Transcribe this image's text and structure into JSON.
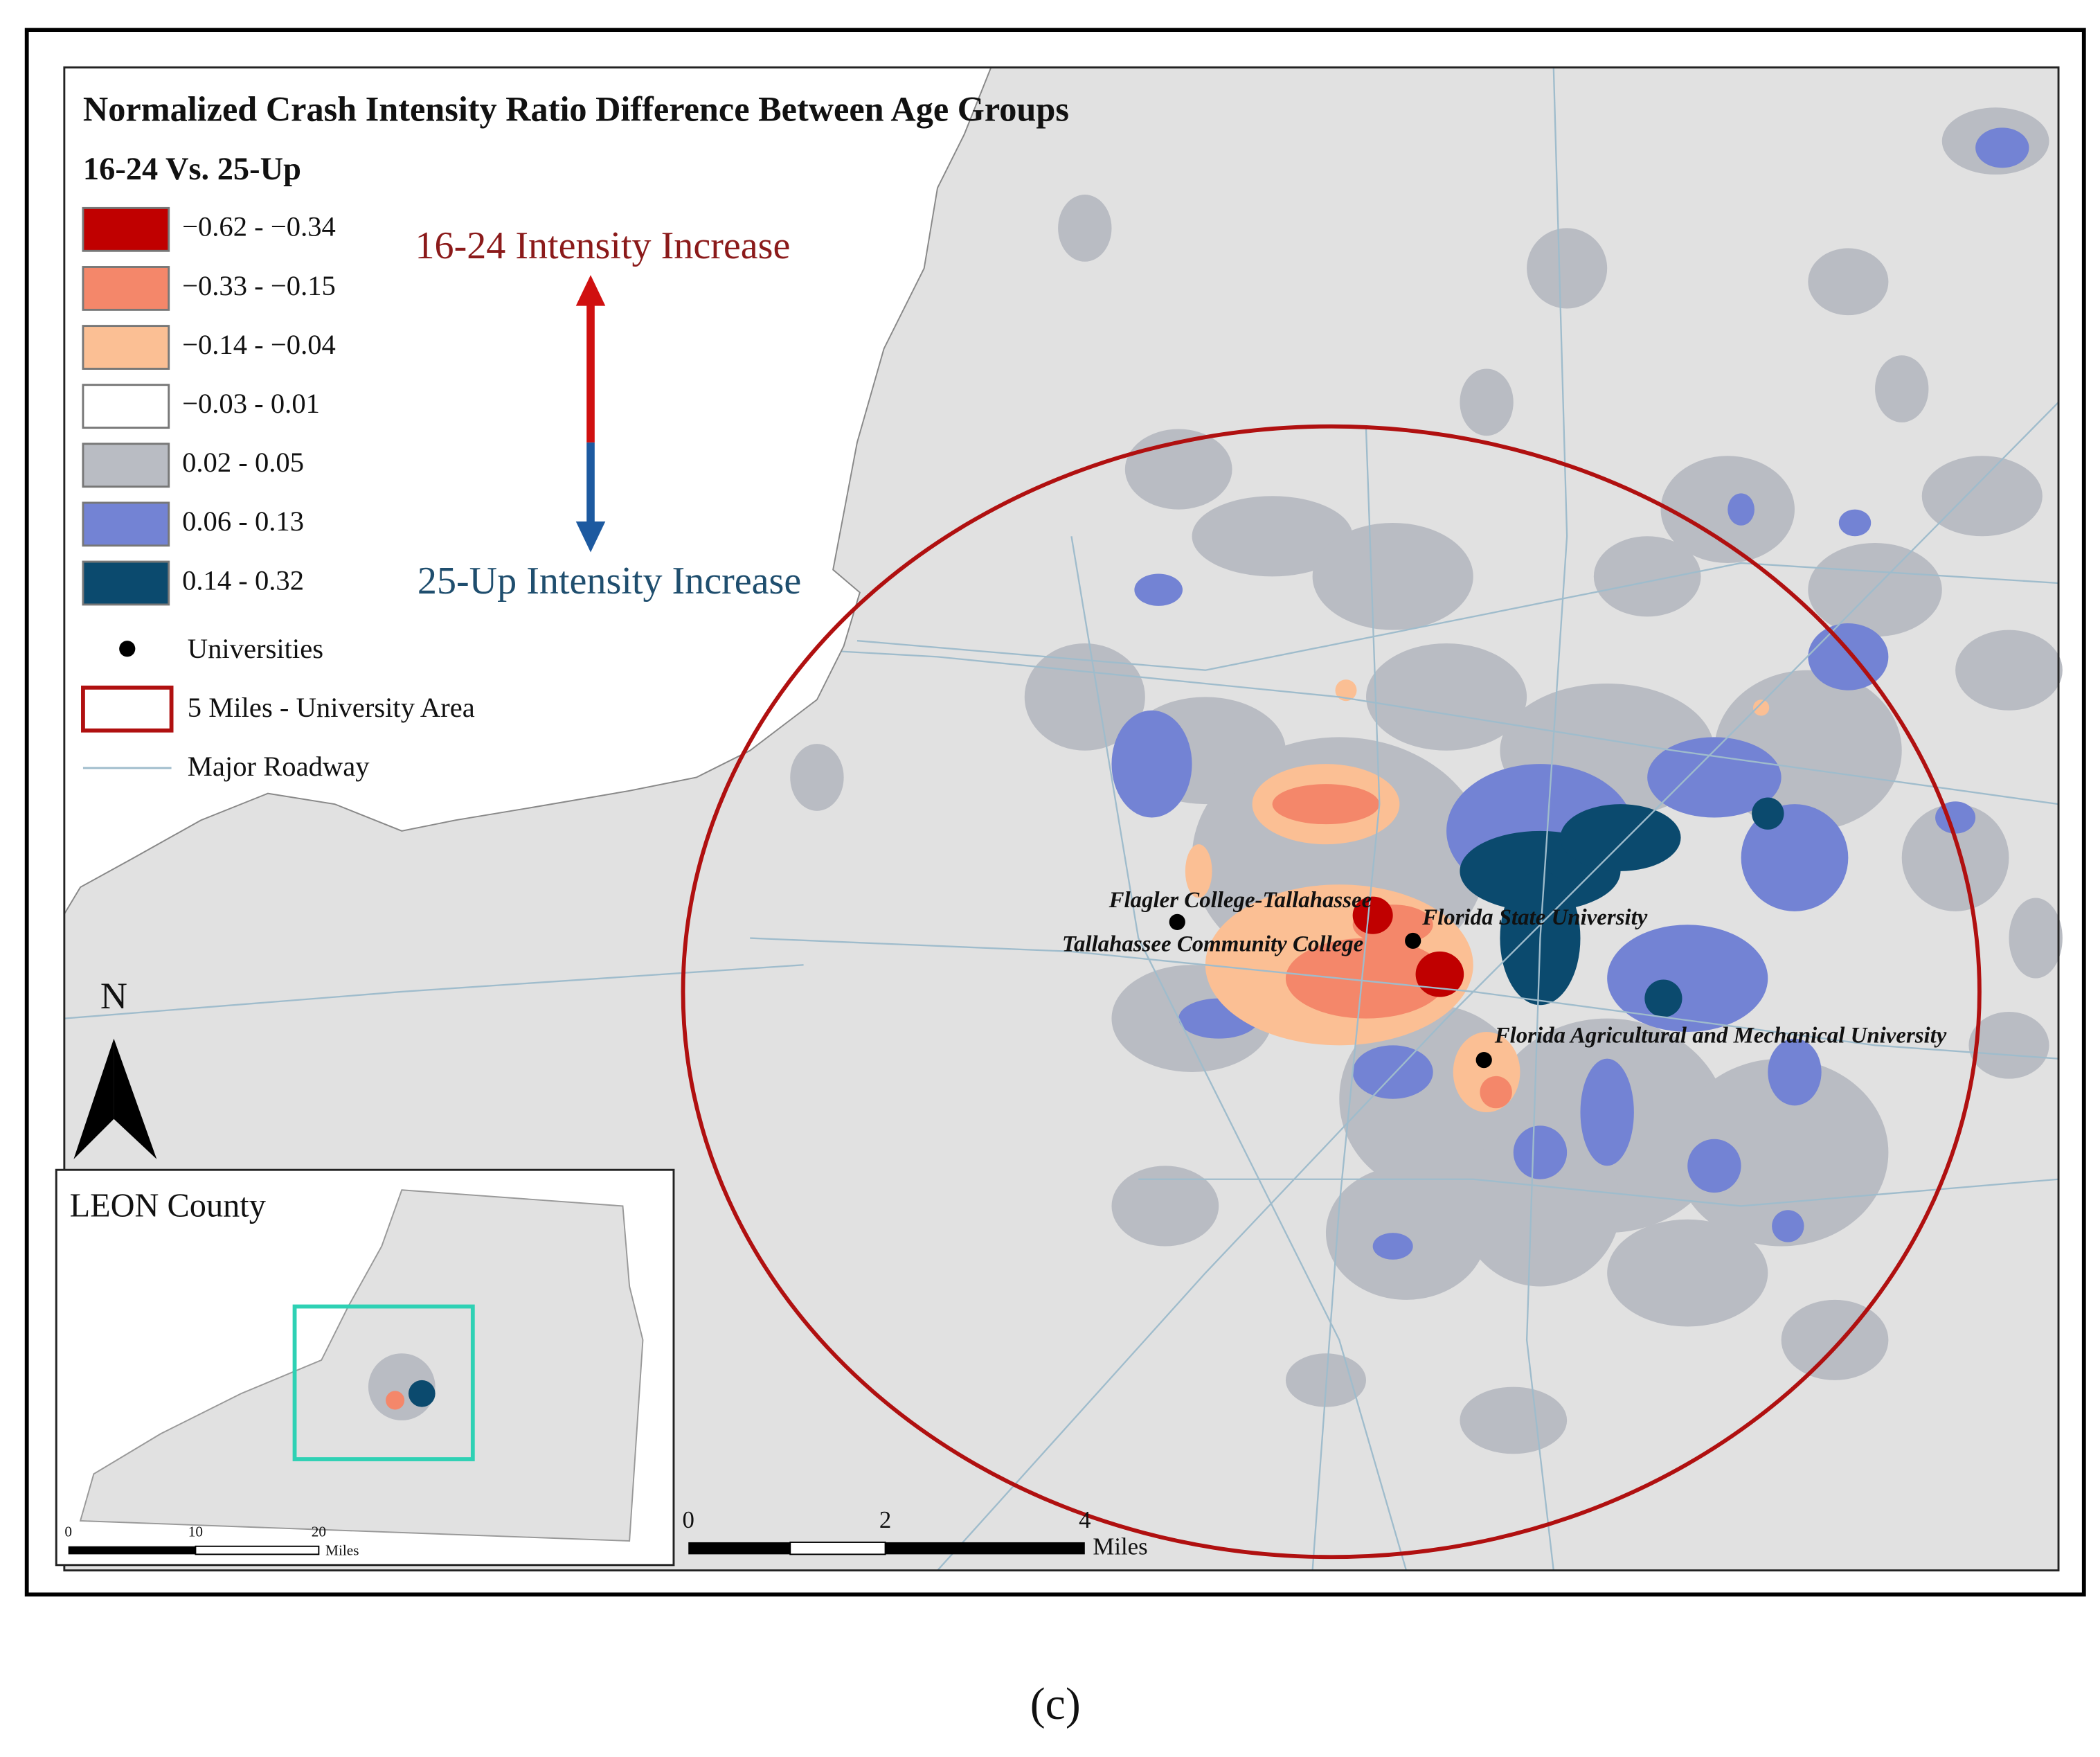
{
  "title": "Normalized Crash Intensity Ratio Difference Between Age Groups",
  "subtitle": "16-24 Vs. 25-Up",
  "legend": {
    "classes": [
      {
        "label": "−0.62 - −0.34",
        "color": "#c00000"
      },
      {
        "label": "−0.33 - −0.15",
        "color": "#f4876a"
      },
      {
        "label": "−0.14 - −0.04",
        "color": "#fbbf94"
      },
      {
        "label": "−0.03 - 0.01",
        "color": "#ffffff"
      },
      {
        "label": "0.02 - 0.05",
        "color": "#b9bcc3"
      },
      {
        "label": "0.06 - 0.13",
        "color": "#7383d4"
      },
      {
        "label": "0.14 - 0.32",
        "color": "#0b4a6e"
      }
    ],
    "universities": "Universities",
    "study_area": "5 Miles - University Area",
    "roadway": "Major Roadway"
  },
  "arrows": {
    "up": "16-24 Intensity Increase",
    "down": "25-Up Intensity Increase"
  },
  "universities": [
    "Flagler College-Tallahassee",
    "Tallahassee Community College",
    "Florida State University",
    "Florida Agricultural and Mechanical University"
  ],
  "north": "N",
  "inset": {
    "title": "LEON County",
    "scale": [
      "0",
      "10",
      "20",
      "Miles"
    ]
  },
  "scale": {
    "ticks": [
      "0",
      "2",
      "4"
    ],
    "unit": "Miles"
  },
  "caption": "(c)"
}
